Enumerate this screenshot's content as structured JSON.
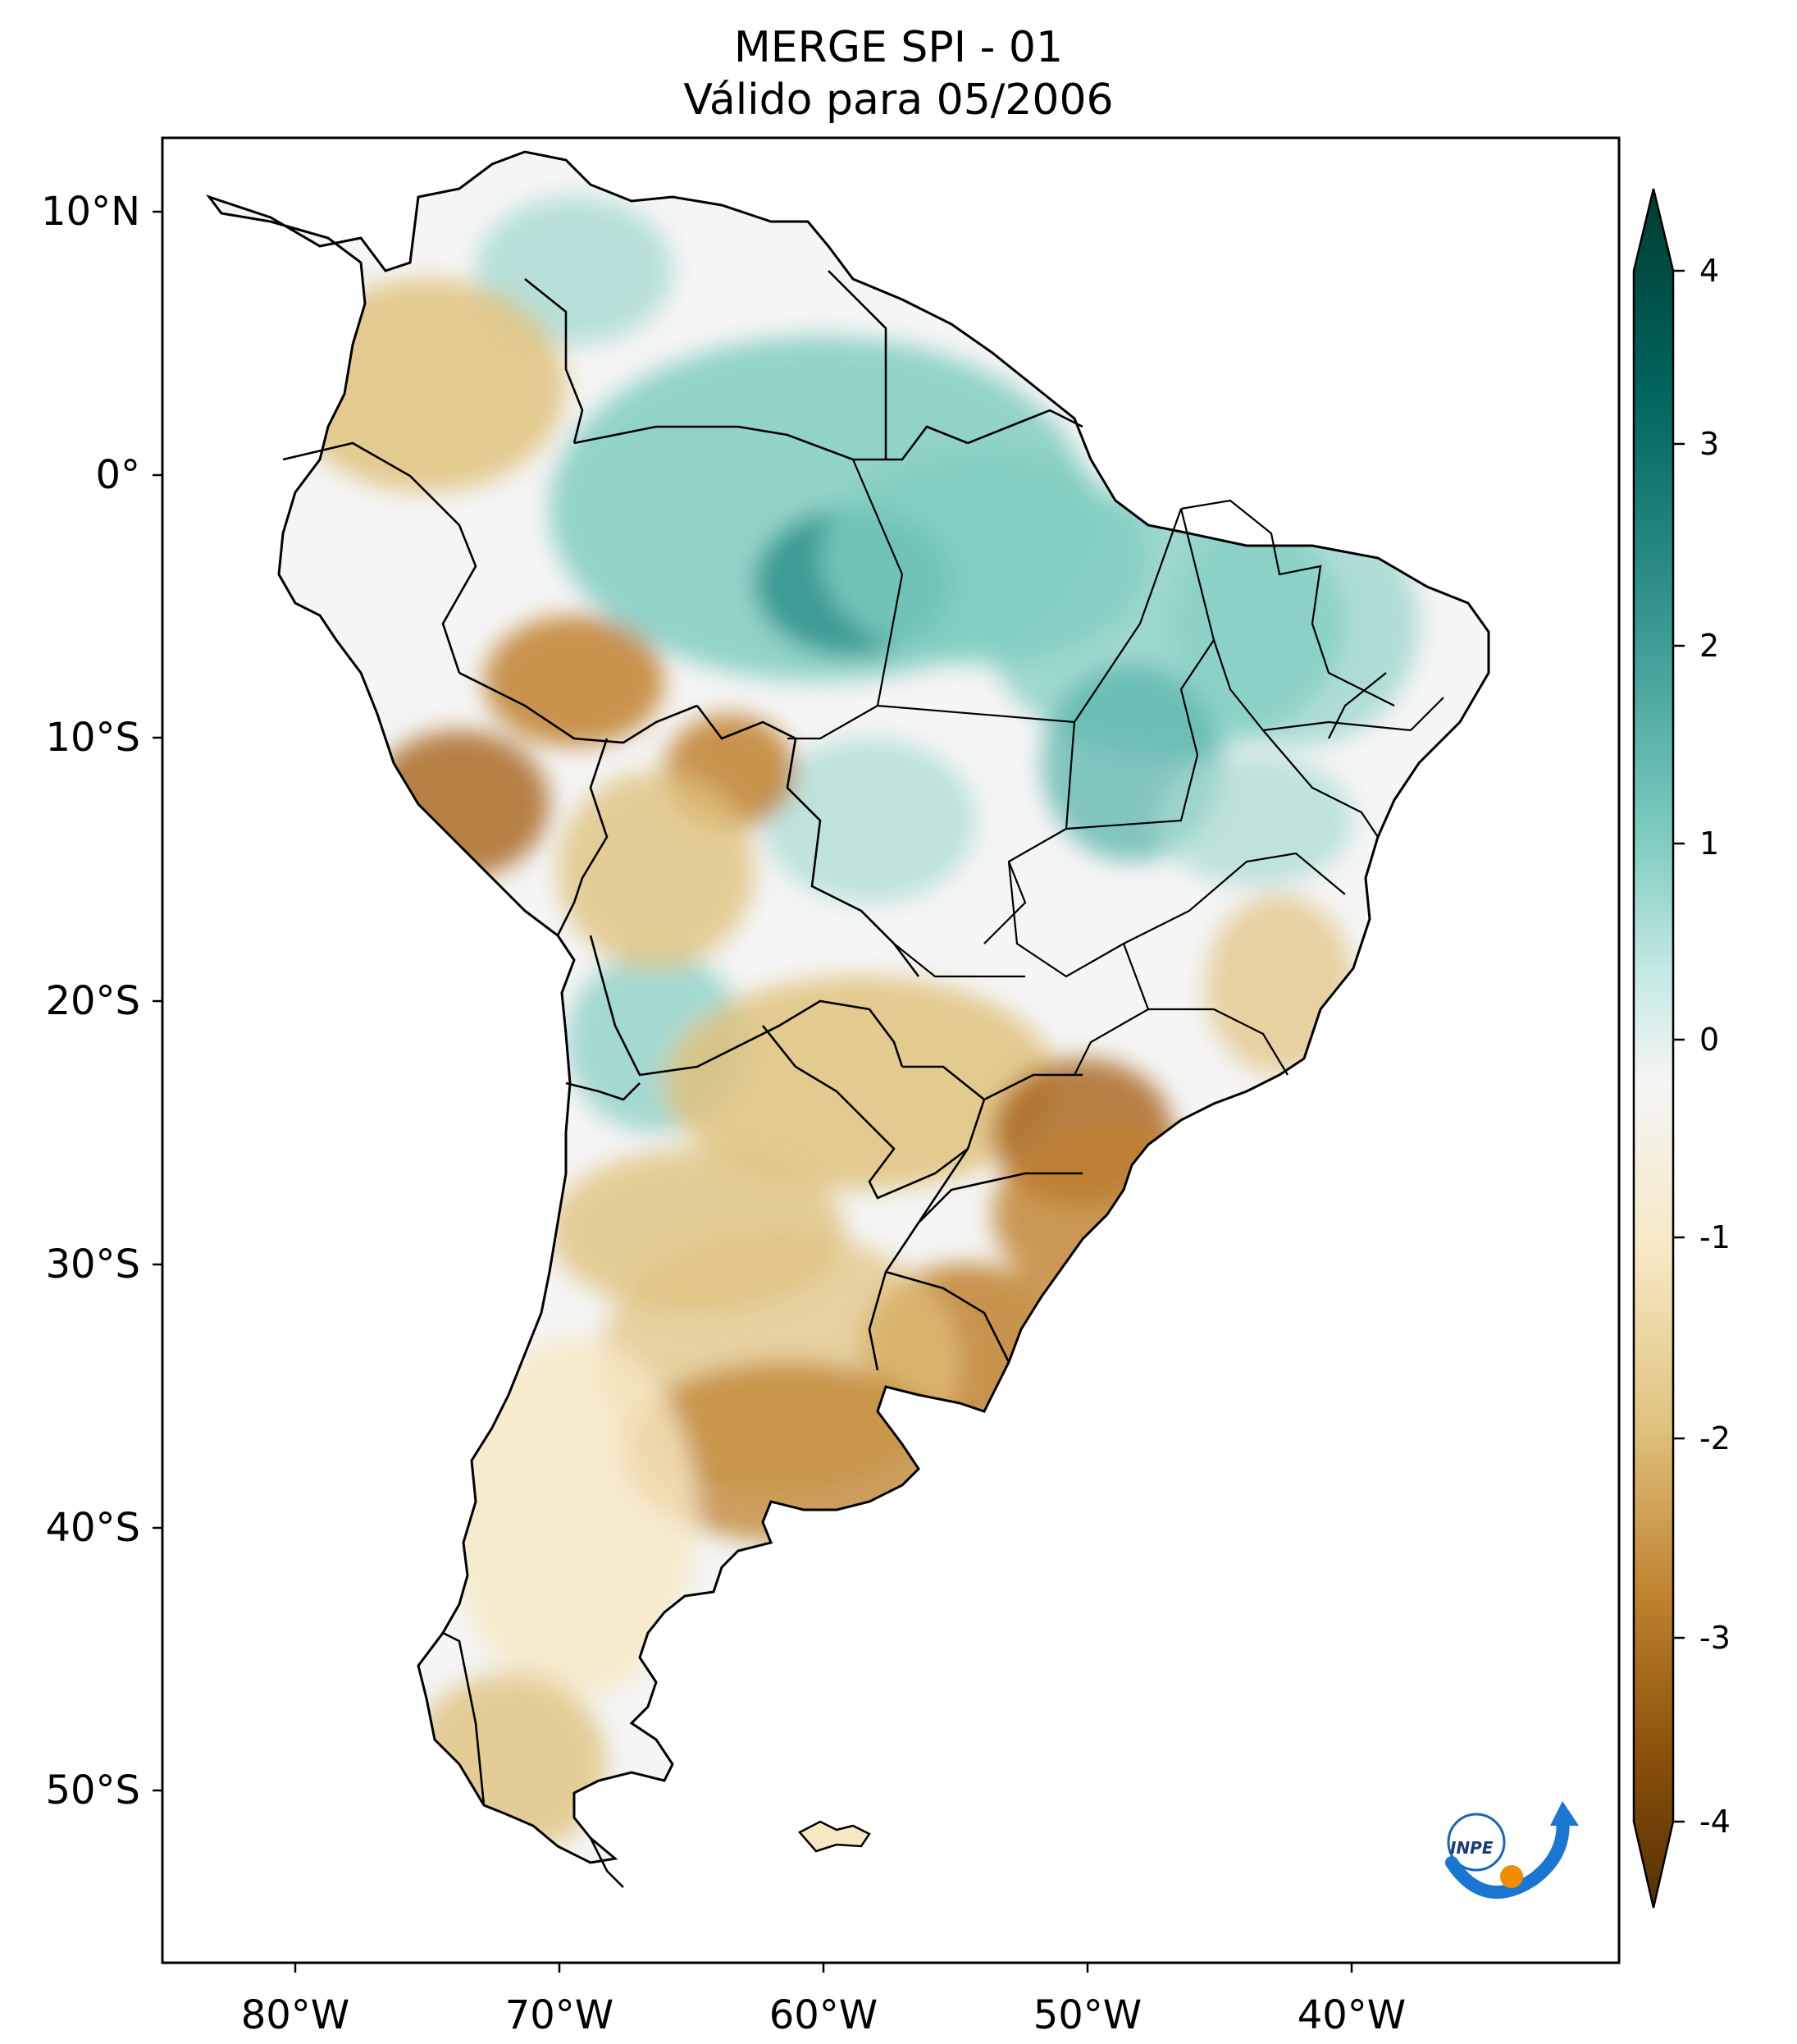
{
  "title": {
    "line1": "MERGE   SPI - 01",
    "line2": "Válido para 05/2006"
  },
  "map": {
    "region": "South America",
    "lon_range": [
      -85,
      -30
    ],
    "lat_range": [
      -56,
      13
    ],
    "lat_labels": [
      "10°N",
      "0°",
      "10°S",
      "20°S",
      "30°S",
      "40°S",
      "50°S"
    ],
    "lon_labels": [
      "80°W",
      "70°W",
      "60°W",
      "50°W",
      "40°W"
    ]
  },
  "colorbar": {
    "ticks": [
      "4",
      "3",
      "2",
      "1",
      "0",
      "-1",
      "-2",
      "-3",
      "-4"
    ],
    "colormap": "BrBG",
    "colors": {
      "wet_max": "#003c30",
      "wet": "#35978f",
      "neutral": "#f5f5f5",
      "dry": "#bf812d",
      "dry_max": "#543005"
    }
  },
  "logo": {
    "text": "INPE"
  }
}
